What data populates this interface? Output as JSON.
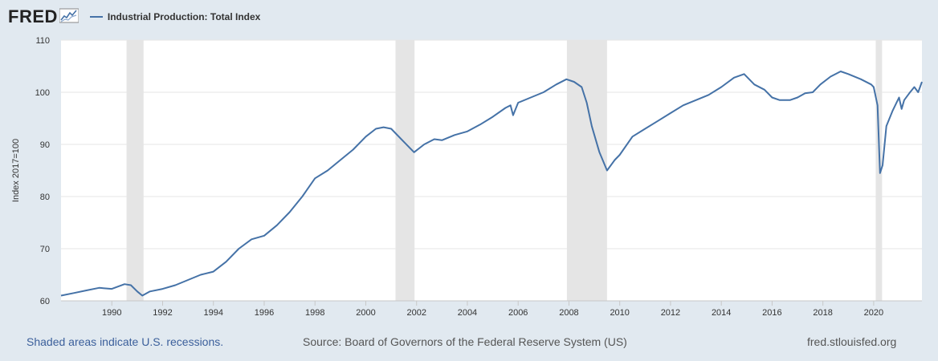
{
  "header": {
    "logo_text": "FRED",
    "logo_icon": "line-graph-icon"
  },
  "legend": {
    "series_label": "Industrial Production: Total Index"
  },
  "footer": {
    "recession_note": "Shaded areas indicate U.S. recessions.",
    "source": "Source: Board of Governors of the Federal Reserve System (US)",
    "site": "fred.stlouisfed.org"
  },
  "colors": {
    "line": "#4572a7",
    "recession": "#e5e5e5",
    "plot_bg": "#ffffff",
    "page_bg": "#e1e9f0"
  },
  "chart_data": {
    "type": "line",
    "title": "",
    "ylabel": "Index 2017=100",
    "xlabel": "",
    "xlim": [
      1988.0,
      2021.9
    ],
    "ylim": [
      60,
      110
    ],
    "y_ticks": [
      60,
      70,
      80,
      90,
      100,
      110
    ],
    "x_ticks": [
      "1990",
      "1992",
      "1994",
      "1996",
      "1998",
      "2000",
      "2002",
      "2004",
      "2006",
      "2008",
      "2010",
      "2012",
      "2014",
      "2016",
      "2018",
      "2020"
    ],
    "grid": true,
    "recessions": [
      {
        "start": 1990.58,
        "end": 1991.25
      },
      {
        "start": 2001.17,
        "end": 2001.92
      },
      {
        "start": 2007.92,
        "end": 2009.5
      },
      {
        "start": 2020.08,
        "end": 2020.33
      }
    ],
    "series": [
      {
        "name": "Industrial Production: Total Index",
        "x": [
          1988.0,
          1988.5,
          1989.0,
          1989.5,
          1990.0,
          1990.5,
          1990.75,
          1991.0,
          1991.2,
          1991.5,
          1992.0,
          1992.5,
          1993.0,
          1993.5,
          1994.0,
          1994.5,
          1995.0,
          1995.5,
          1996.0,
          1996.5,
          1997.0,
          1997.5,
          1998.0,
          1998.5,
          1999.0,
          1999.5,
          2000.0,
          2000.4,
          2000.7,
          2001.0,
          2001.5,
          2001.9,
          2002.3,
          2002.7,
          2003.0,
          2003.5,
          2004.0,
          2004.5,
          2005.0,
          2005.5,
          2005.7,
          2005.8,
          2006.0,
          2006.5,
          2007.0,
          2007.5,
          2007.9,
          2008.2,
          2008.5,
          2008.7,
          2008.9,
          2009.2,
          2009.5,
          2009.8,
          2010.0,
          2010.5,
          2011.0,
          2011.5,
          2012.0,
          2012.5,
          2013.0,
          2013.5,
          2014.0,
          2014.5,
          2014.9,
          2015.3,
          2015.7,
          2016.0,
          2016.3,
          2016.7,
          2017.0,
          2017.3,
          2017.6,
          2017.9,
          2018.3,
          2018.7,
          2019.0,
          2019.5,
          2019.9,
          2020.0,
          2020.15,
          2020.25,
          2020.35,
          2020.5,
          2020.75,
          2021.0,
          2021.1,
          2021.2,
          2021.4,
          2021.6,
          2021.75,
          2021.9
        ],
        "values": [
          61.0,
          61.5,
          62.0,
          62.5,
          62.3,
          63.2,
          63.0,
          61.8,
          61.0,
          61.8,
          62.3,
          63.0,
          64.0,
          65.0,
          65.6,
          67.5,
          70.0,
          71.8,
          72.5,
          74.5,
          77.0,
          80.0,
          83.5,
          85.0,
          87.0,
          89.0,
          91.5,
          93.0,
          93.3,
          93.0,
          90.5,
          88.5,
          90.0,
          91.0,
          90.8,
          91.8,
          92.5,
          93.8,
          95.3,
          97.0,
          97.5,
          95.6,
          98.0,
          99.0,
          100.0,
          101.5,
          102.5,
          102.0,
          101.0,
          98.0,
          93.5,
          88.5,
          85.0,
          87.0,
          88.0,
          91.5,
          93.0,
          94.5,
          96.0,
          97.5,
          98.5,
          99.5,
          101.0,
          102.8,
          103.5,
          101.5,
          100.5,
          99.0,
          98.5,
          98.5,
          99.0,
          99.8,
          100.0,
          101.5,
          103.0,
          104.0,
          103.5,
          102.5,
          101.5,
          101.0,
          97.5,
          84.5,
          86.0,
          93.5,
          96.5,
          99.0,
          96.8,
          98.5,
          99.8,
          101.0,
          100.0,
          102.0
        ]
      }
    ]
  }
}
